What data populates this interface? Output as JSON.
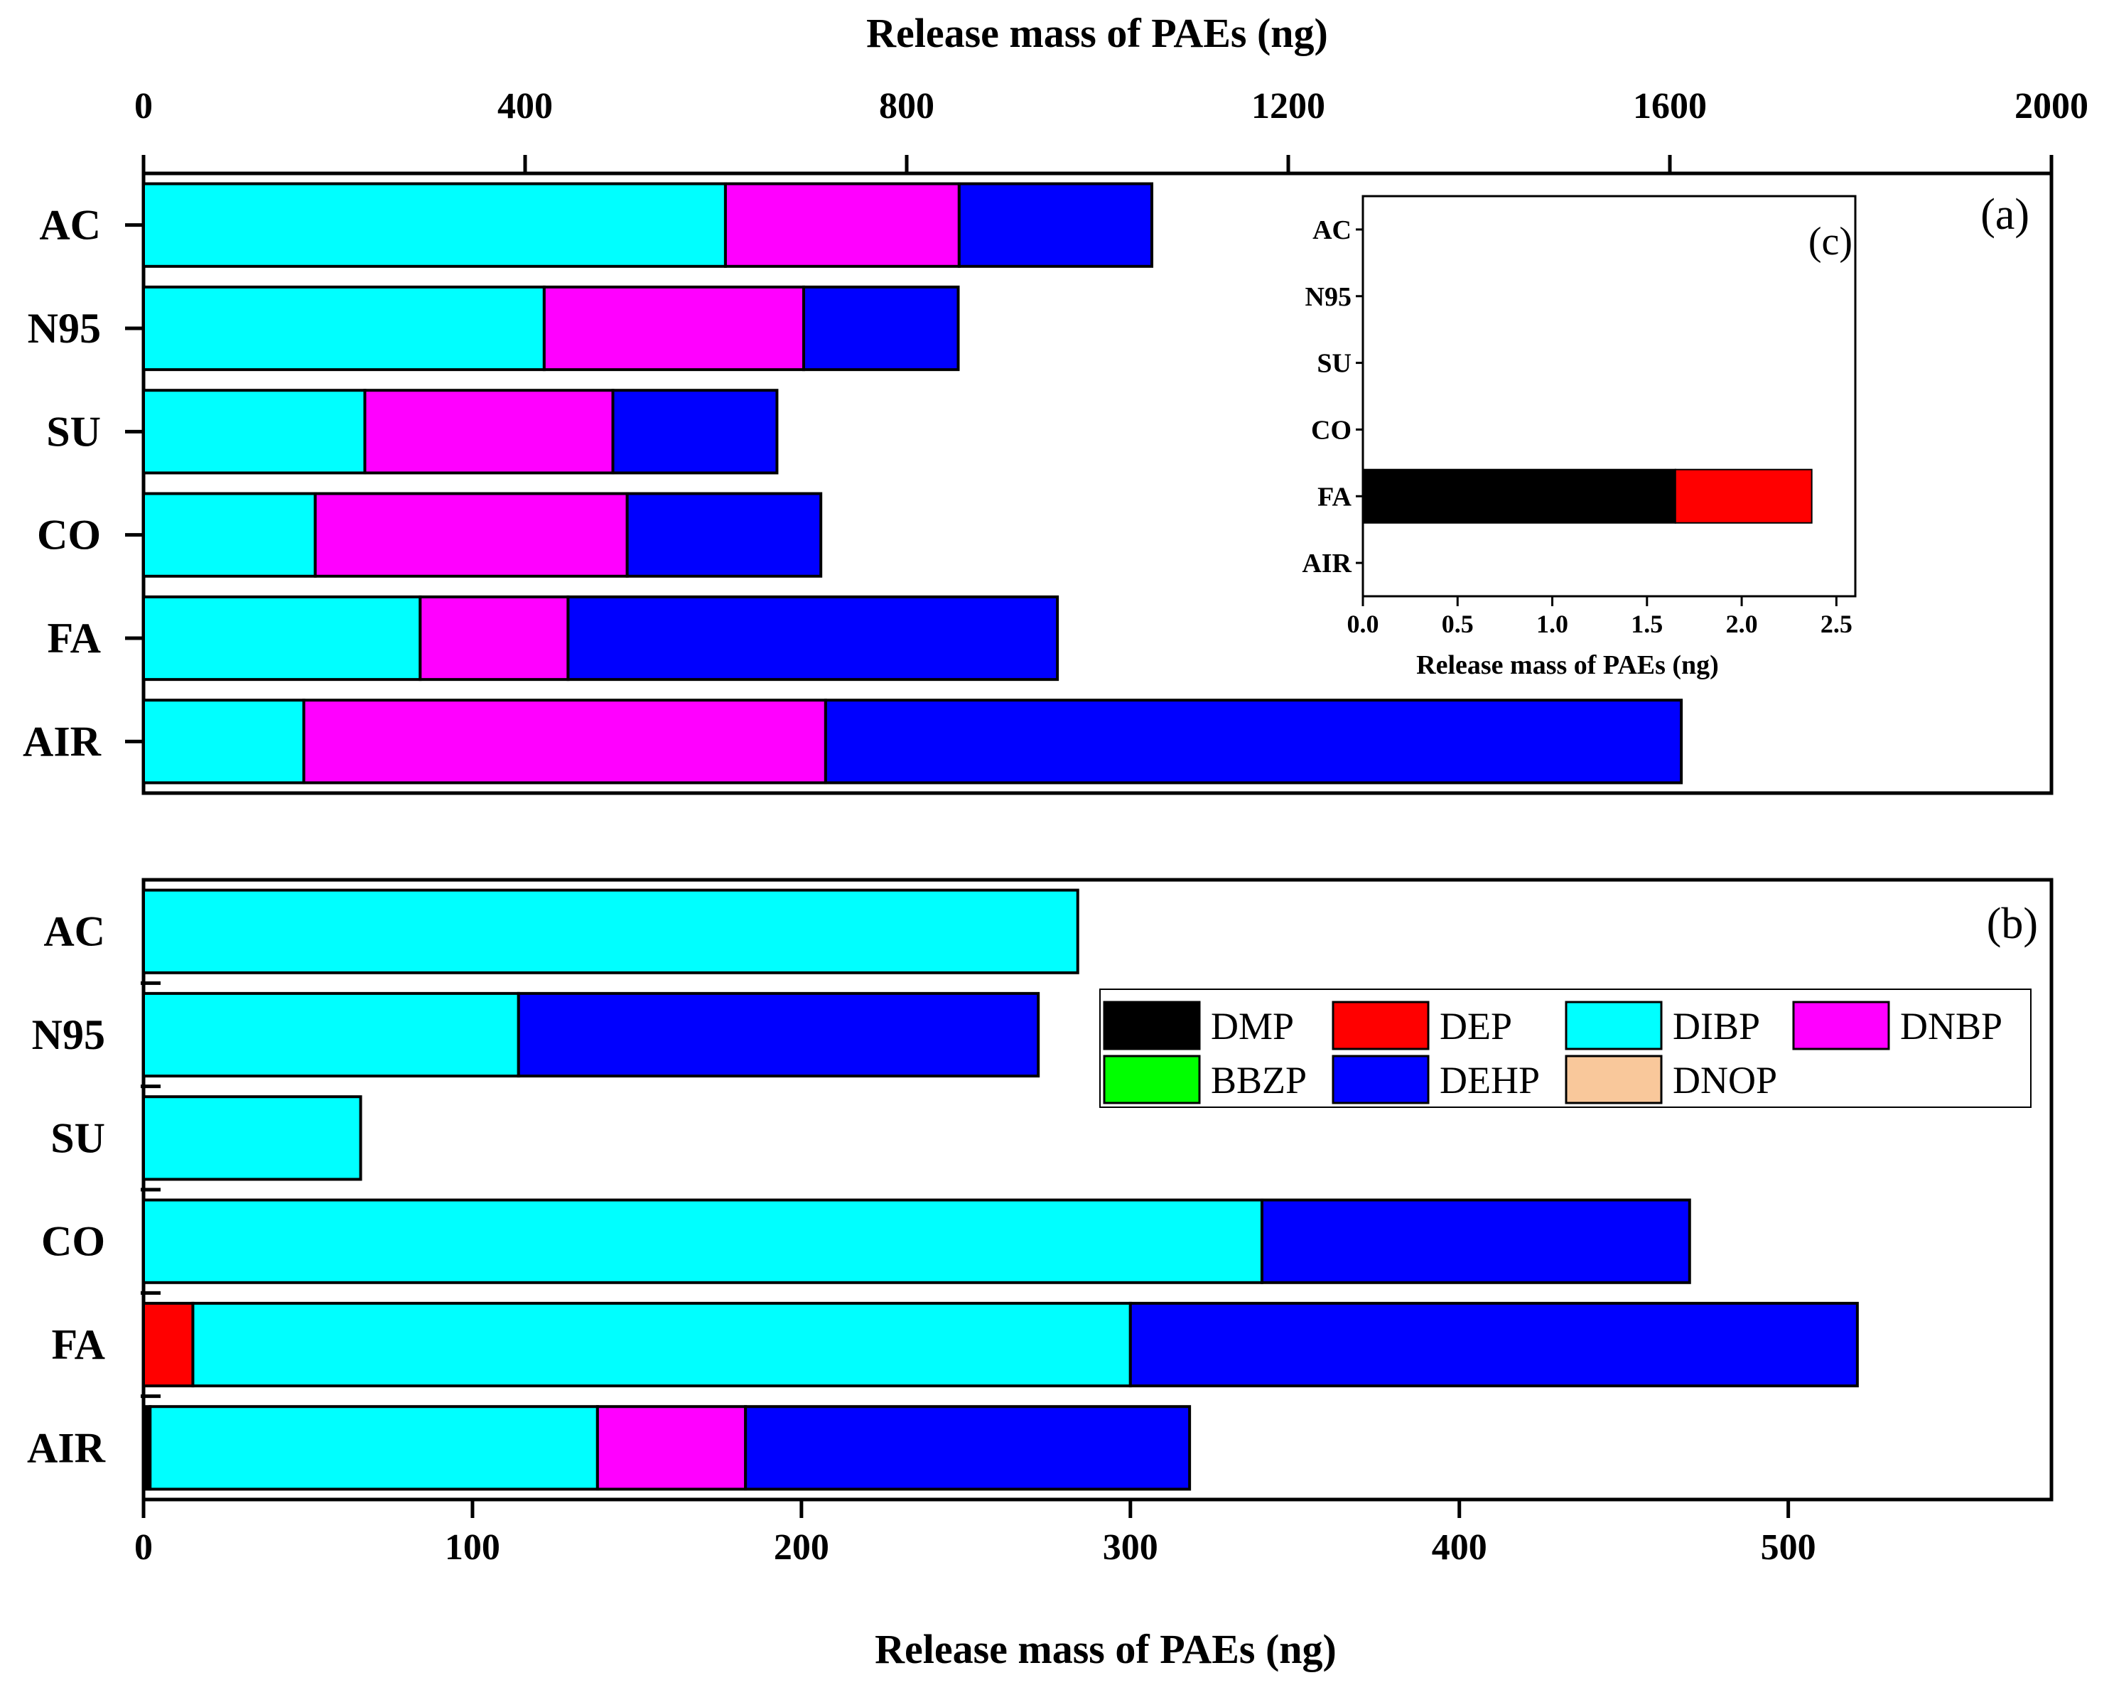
{
  "colors": {
    "DMP": "#000000",
    "DEP": "#ff0000",
    "DIBP": "#00ffff",
    "DNBP": "#ff00ff",
    "BBZP": "#00ff00",
    "DEHP": "#0000ff",
    "DNOP": "#f9c89b"
  },
  "legend": {
    "items": [
      "DMP",
      "DEP",
      "DIBP",
      "DNBP",
      "BBZP",
      "DEHP",
      "DNOP"
    ]
  },
  "chart_data": [
    {
      "panel": "(a)",
      "type": "bar",
      "orientation": "horizontal",
      "stacked": true,
      "xlabel": "Release mass of PAEs (ng)",
      "xlabel_position": "top",
      "xlim": [
        0,
        2000
      ],
      "xticks": [
        "0",
        "400",
        "800",
        "1200",
        "1600",
        "2000"
      ],
      "categories": [
        "AC",
        "N95",
        "SU",
        "CO",
        "FA",
        "AIR"
      ],
      "series": [
        {
          "name": "DIBP",
          "values": [
            610,
            420,
            232,
            180,
            290,
            168
          ]
        },
        {
          "name": "DNBP",
          "values": [
            245,
            272,
            260,
            327,
            155,
            547
          ]
        },
        {
          "name": "DEHP",
          "values": [
            202,
            162,
            172,
            203,
            513,
            897
          ]
        }
      ]
    },
    {
      "panel": "(b)",
      "type": "bar",
      "orientation": "horizontal",
      "stacked": true,
      "xlabel": "Release mass of PAEs (ng)",
      "xlim": [
        0,
        580
      ],
      "xticks": [
        "0",
        "100",
        "200",
        "300",
        "400",
        "500"
      ],
      "categories": [
        "AC",
        "N95",
        "SU",
        "CO",
        "FA",
        "AIR"
      ],
      "series": [
        {
          "name": "DMP",
          "values": [
            0,
            0,
            0,
            0,
            0,
            2
          ]
        },
        {
          "name": "DEP",
          "values": [
            0,
            0,
            0,
            0,
            15,
            0
          ]
        },
        {
          "name": "DIBP",
          "values": [
            284,
            114,
            66,
            340,
            285,
            136
          ]
        },
        {
          "name": "DNBP",
          "values": [
            0,
            0,
            0,
            0,
            0,
            45
          ]
        },
        {
          "name": "DEHP",
          "values": [
            0,
            158,
            0,
            130,
            221,
            135
          ]
        }
      ]
    },
    {
      "panel": "(c)",
      "type": "bar",
      "orientation": "horizontal",
      "stacked": true,
      "inset_of": "(a)",
      "xlabel": "Release mass of PAEs (ng)",
      "xlim": [
        0,
        2.6
      ],
      "xticks": [
        "0.0",
        "0.5",
        "1.0",
        "1.5",
        "2.0",
        "2.5"
      ],
      "categories": [
        "AC",
        "N95",
        "SU",
        "CO",
        "FA",
        "AIR"
      ],
      "series": [
        {
          "name": "DMP",
          "values": [
            0,
            0,
            0,
            0,
            1.65,
            0
          ]
        },
        {
          "name": "DEP",
          "values": [
            0,
            0,
            0,
            0,
            0.72,
            0
          ]
        }
      ]
    }
  ]
}
